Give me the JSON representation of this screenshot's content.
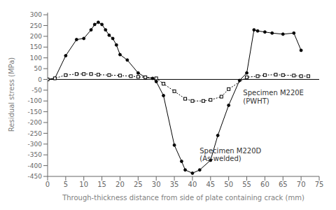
{
  "chart_data": {
    "type": "line",
    "xlabel": "Through-thickness distance from side of plate containing crack (mm)",
    "ylabel": "Residual stress (MPa)",
    "xlim": [
      0,
      75
    ],
    "ylim": [
      -450,
      310
    ],
    "xticks": [
      0,
      5,
      10,
      15,
      20,
      25,
      30,
      35,
      40,
      45,
      50,
      55,
      60,
      65,
      70,
      75
    ],
    "yticks": [
      -450,
      -400,
      -350,
      -300,
      -250,
      -200,
      -150,
      -100,
      -50,
      0,
      50,
      100,
      150,
      200,
      250,
      300
    ],
    "grid": false,
    "hlines": [
      0
    ],
    "series": [
      {
        "color": "#000000",
        "marker": "circle",
        "line_style": "solid",
        "x": [
          0,
          2,
          5,
          8,
          10,
          12,
          13,
          14,
          15,
          16,
          17,
          18,
          19,
          20,
          22,
          25,
          27,
          29,
          30,
          32,
          35,
          37,
          38,
          40,
          42,
          45,
          47,
          50,
          53,
          55,
          57,
          58,
          60,
          62,
          65,
          68,
          70
        ],
        "values": [
          0,
          5,
          110,
          185,
          190,
          230,
          255,
          265,
          255,
          230,
          205,
          190,
          160,
          115,
          90,
          30,
          10,
          5,
          -10,
          -75,
          -305,
          -380,
          -420,
          -435,
          -420,
          -375,
          -260,
          -120,
          -5,
          30,
          230,
          225,
          220,
          215,
          210,
          215,
          135
        ]
      },
      {
        "color": "#000000",
        "marker": "open_square",
        "line_style": "dotted",
        "x": [
          0,
          2,
          5,
          8,
          10,
          12,
          14,
          17,
          20,
          23,
          25,
          27,
          30,
          32,
          35,
          38,
          40,
          43,
          45,
          48,
          50,
          55,
          58,
          60,
          63,
          65,
          68,
          70,
          72
        ],
        "values": [
          0,
          5,
          20,
          25,
          25,
          25,
          22,
          20,
          18,
          15,
          12,
          10,
          5,
          -20,
          -55,
          -90,
          -100,
          -100,
          -95,
          -80,
          -45,
          10,
          15,
          20,
          22,
          20,
          18,
          15,
          15
        ]
      }
    ],
    "annotations": [
      {
        "text": "Specimen M220D\n(As-welded)",
        "x": 42,
        "y": -310
      },
      {
        "text": "Specimen M220E\n(PWHT)",
        "x": 54,
        "y": -42
      }
    ]
  }
}
